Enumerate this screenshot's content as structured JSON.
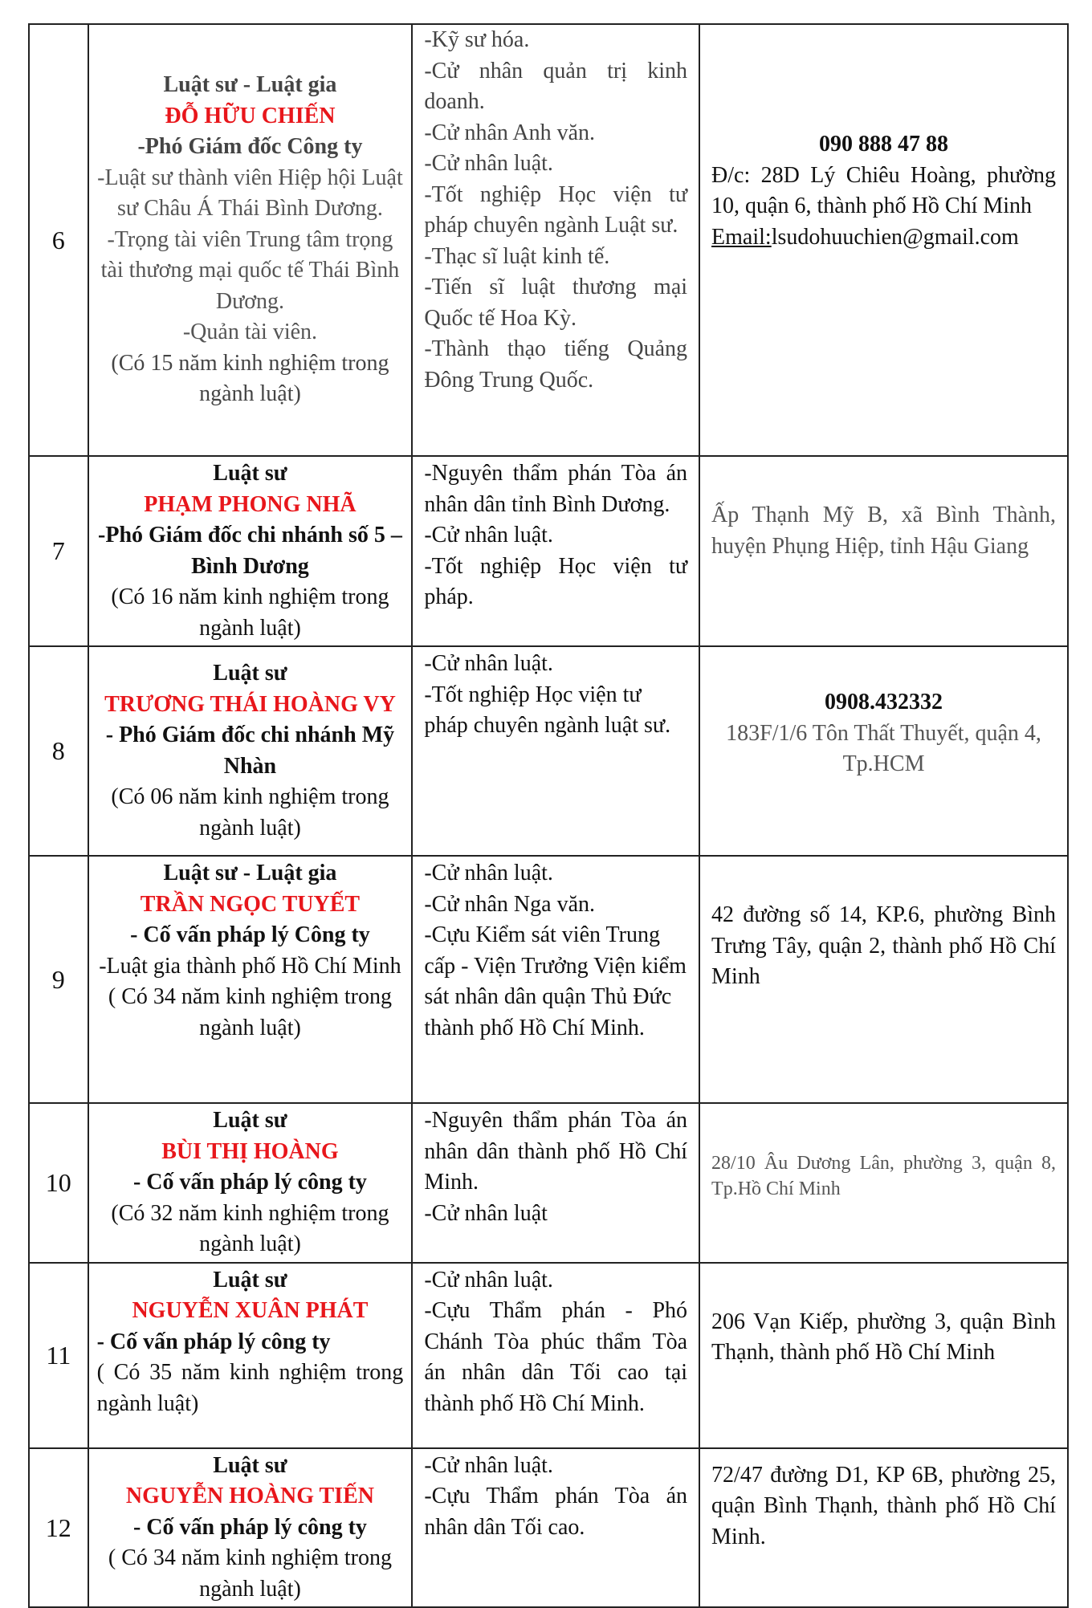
{
  "rows": [
    {
      "no": "6",
      "title": "Luật sư - Luật gia",
      "name": "ĐỖ HỮU CHIẾN",
      "position": "-Phó Giám đốc Công ty",
      "notes": [
        "-Luật sư thành viên Hiệp hội Luật sư Châu Á Thái Bình Dương.",
        "-Trọng tài viên Trung tâm trọng tài thương mại quốc tế Thái Bình Dương.",
        "-Quản tài viên."
      ],
      "experience": "(Có 15 năm kinh nghiệm trong ngành luật)",
      "qualifications": [
        "-Kỹ sư hóa.",
        "-Cử nhân quản trị kinh doanh.",
        "-Cử nhân Anh văn.",
        "-Cử nhân luật.",
        "-Tốt nghiệp Học viện tư pháp chuyên ngành Luật sư.",
        "-Thạc sĩ luật kinh tế.",
        "-Tiến sĩ luật thương mại Quốc tế Hoa Kỳ.",
        "-Thành thạo tiếng Quảng Đông Trung Quốc."
      ],
      "phone": "090 888 47 88",
      "address": "Đ/c: 28D Lý Chiêu Hoàng, phường 10, quận 6, thành phố Hồ Chí Minh",
      "email_label": "Email:",
      "email": "lsudohuuchien@gmail.com"
    },
    {
      "no": "7",
      "title": "Luật sư",
      "name": "PHẠM PHONG NHÃ",
      "position": "-Phó Giám đốc chi nhánh số 5 – Bình Dương",
      "experience": "(Có 16 năm kinh nghiệm trong ngành luật)",
      "qualifications": [
        "-Nguyên thẩm phán Tòa án nhân dân tỉnh Bình Dương.",
        "-Cử nhân luật.",
        "-Tốt nghiệp Học viện tư pháp."
      ],
      "address": "Ấp Thạnh Mỹ B, xã Bình Thành, huyện Phụng Hiệp, tỉnh Hậu Giang"
    },
    {
      "no": "8",
      "title": "Luật sư",
      "name": "TRƯƠNG THÁI HOÀNG VY",
      "position": "- Phó Giám đốc chi nhánh Mỹ Nhàn",
      "experience": "(Có 06 năm kinh nghiệm trong ngành luật)",
      "qualifications": [
        "-Cử nhân luật.",
        "-Tốt nghiệp Học viện tư pháp chuyên ngành luật sư."
      ],
      "phone": "0908.432332",
      "address": "183F/1/6 Tôn Thất Thuyết, quận 4, Tp.HCM"
    },
    {
      "no": "9",
      "title": "Luật sư - Luật gia",
      "name": "TRẦN NGỌC TUYẾT",
      "position": "- Cố vấn pháp lý Công ty",
      "notes": [
        "-Luật gia thành phố Hồ Chí Minh"
      ],
      "experience": "( Có 34 năm kinh nghiệm trong ngành luật)",
      "qualifications": [
        "-Cử nhân luật.",
        "-Cử nhân Nga văn.",
        "-Cựu Kiểm sát viên Trung cấp - Viện Trưởng Viện kiểm sát nhân dân quận Thủ Đức thành phố Hồ Chí Minh."
      ],
      "address": "42 đường số 14, KP.6, phường Bình Trưng Tây, quận 2, thành phố Hồ Chí Minh"
    },
    {
      "no": "10",
      "title": "Luật sư",
      "name": "BÙI THỊ HOÀNG",
      "position": "- Cố vấn pháp lý công ty",
      "experience": "(Có 32 năm kinh nghiệm trong ngành luật)",
      "qualifications": [
        "-Nguyên thẩm phán Tòa án nhân dân thành phố Hồ Chí Minh.",
        "-Cử nhân luật"
      ],
      "address": "28/10 Âu Dương Lân, phường 3, quận 8, Tp.Hồ Chí Minh"
    },
    {
      "no": "11",
      "title": "Luật sư",
      "name": "NGUYỄN XUÂN PHÁT",
      "position": "- Cố vấn pháp lý công ty",
      "experience": "( Có 35 năm kinh nghiệm trong ngành luật)",
      "qualifications": [
        "-Cử nhân luật.",
        "-Cựu Thẩm phán - Phó Chánh Tòa phúc thẩm Tòa án nhân dân Tối cao tại thành phố Hồ Chí Minh."
      ],
      "address": "206 Vạn Kiếp, phường 3, quận Bình Thạnh, thành phố Hồ Chí Minh"
    },
    {
      "no": "12",
      "title": "Luật sư",
      "name": "NGUYỄN HOÀNG TIẾN",
      "position": "- Cố vấn pháp lý công ty",
      "experience": "( Có 34 năm kinh nghiệm trong ngành luật)",
      "qualifications": [
        "-Cử nhân luật.",
        "-Cựu Thẩm phán Tòa án nhân dân Tối cao."
      ],
      "address": "72/47 đường D1, KP 6B, phường 25, quận Bình Thạnh, thành phố Hồ Chí Minh."
    }
  ]
}
